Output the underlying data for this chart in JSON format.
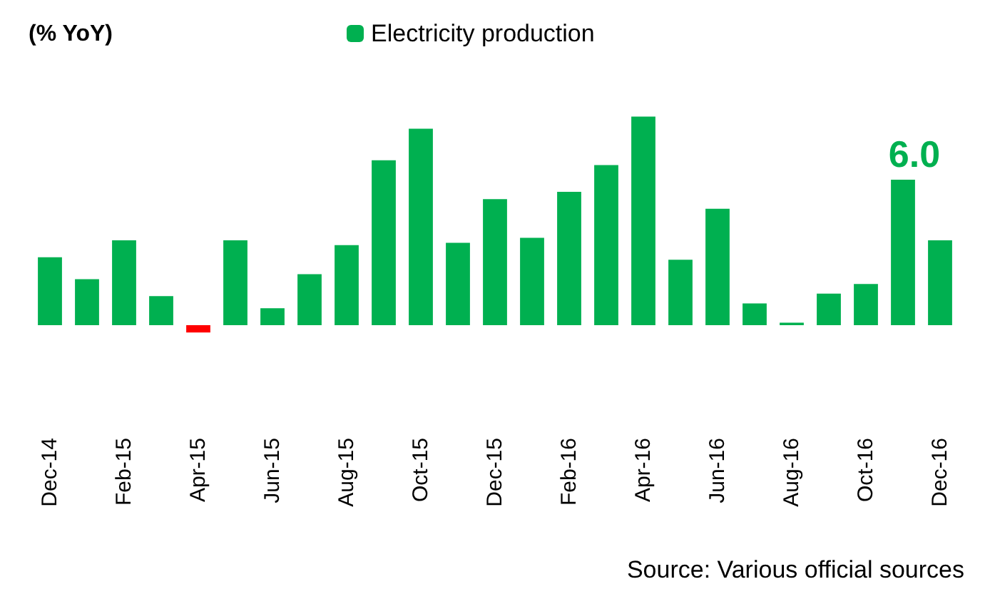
{
  "chart_data": {
    "type": "bar",
    "ylabel": "(% YoY)",
    "categories": [
      "Dec-14",
      null,
      "Feb-15",
      null,
      "Apr-15",
      null,
      "Jun-15",
      null,
      "Aug-15",
      null,
      "Oct-15",
      null,
      "Dec-15",
      null,
      "Feb-16",
      null,
      "Apr-16",
      null,
      "Jun-16",
      null,
      "Aug-16",
      null,
      "Oct-16",
      null,
      "Dec-16"
    ],
    "series": [
      {
        "name": "Electricity production",
        "color": "#00b050",
        "colors": [
          "#00b050",
          "#00b050",
          "#00b050",
          "#00b050",
          "#ff0000",
          "#00b050",
          "#00b050",
          "#00b050",
          "#00b050",
          "#00b050",
          "#00b050",
          "#00b050",
          "#00b050",
          "#00b050",
          "#00b050",
          "#00b050",
          "#00b050",
          "#00b050",
          "#00b050",
          "#00b050",
          "#00b050",
          "#00b050",
          "#00b050",
          "#00b050",
          "#00b050"
        ],
        "values": [
          2.8,
          1.9,
          3.5,
          1.2,
          -0.3,
          3.5,
          0.7,
          2.1,
          3.3,
          6.8,
          8.1,
          3.4,
          5.2,
          3.6,
          5.5,
          6.6,
          8.6,
          2.7,
          4.8,
          0.9,
          0.1,
          1.3,
          1.7,
          6.0,
          3.5
        ],
        "value_labels": [
          null,
          null,
          null,
          null,
          null,
          null,
          null,
          null,
          null,
          null,
          null,
          null,
          null,
          null,
          null,
          null,
          null,
          null,
          null,
          null,
          null,
          null,
          null,
          "6.0",
          null
        ]
      }
    ],
    "legend": "top",
    "annotations": [
      "Source: Various official sources"
    ]
  }
}
